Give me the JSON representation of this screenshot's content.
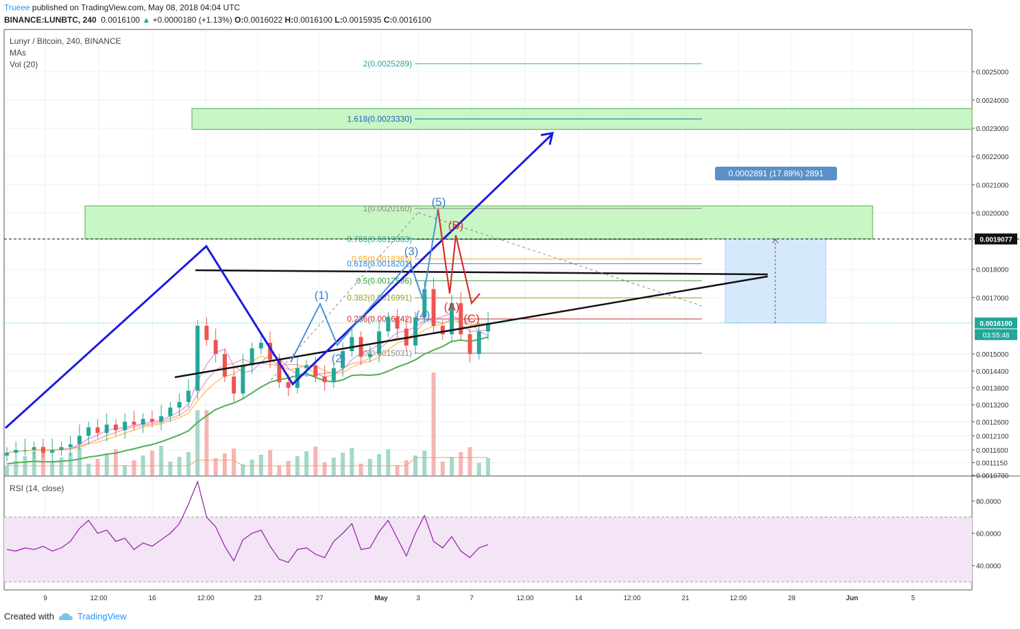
{
  "header": {
    "author": "Trueee",
    "published_text": "published on TradingView.com, May 08, 2018 04:04 UTC",
    "symbol": "BINANCE:LUNBTC, 240",
    "last_price": "0.0016100",
    "change": "+0.0000180 (+1.13%)",
    "o_label": "O:",
    "o_value": "0.0016022",
    "h_label": "H:",
    "h_value": "0.0016100",
    "l_label": "L:",
    "l_value": "0.0015935",
    "c_label": "C:",
    "c_value": "0.0016100"
  },
  "legend": {
    "title": "Lunyr / Bitcoin, 240, BINANCE",
    "mas": "MAs",
    "vol": "Vol (20)",
    "rsi": "RSI (14, close)"
  },
  "footer": {
    "created_with": "Created with",
    "brand": "TradingView"
  },
  "colors": {
    "up": "#26a69a",
    "down": "#ef5350",
    "wave": "#1a1adf",
    "abc": "#d32f2f",
    "rsi": "#9c27b0",
    "zone": "#b7f3b1"
  },
  "chart_data": [
    {
      "type": "candlestick",
      "title": "Lunyr / Bitcoin, 240, BINANCE",
      "y_scale": "linear",
      "ylim": [
        0.00107,
        0.00265
      ],
      "y_ticks": [
        "0.0025000",
        "0.0024000",
        "0.0023000",
        "0.0022000",
        "0.0021000",
        "0.0020000",
        "0.0019077",
        "0.0018000",
        "0.0017000",
        "0.0016100",
        "0.0015000",
        "0.0014400",
        "0.0013800",
        "0.0013200",
        "0.0012600",
        "0.0012100",
        "0.0011600",
        "0.0011150",
        "0.0010700"
      ],
      "x_ticks": [
        "9",
        "12:00",
        "16",
        "12:00",
        "23",
        "27",
        "May",
        "3",
        "7",
        "12:00",
        "14",
        "12:00",
        "21",
        "12:00",
        "28",
        "Jun",
        "5"
      ],
      "current_price": "0.0016100",
      "countdown": "03:55:48",
      "measure_label": "0.0002891 (17.89%) 2891",
      "fib_levels": [
        {
          "label": "2(0.0025289)",
          "value": 0.0025289,
          "color": "#26a69a"
        },
        {
          "label": "1.618(0.0023330)",
          "value": 0.002333,
          "color": "#1565c0"
        },
        {
          "label": "1(0.0020160)",
          "value": 0.002016,
          "color": "#888888"
        },
        {
          "label": "0.786(0.0019063)",
          "value": 0.0019063,
          "color": "#26a69a"
        },
        {
          "label": "0.65(0.0018365)",
          "value": 0.0018365,
          "color": "#f9a825"
        },
        {
          "label": "0.618(0.0018201)",
          "value": 0.0018201,
          "color": "#1e88e5"
        },
        {
          "label": "0.5(0.0017596)",
          "value": 0.0017596,
          "color": "#2e9d2e"
        },
        {
          "label": "0.382(0.0016991)",
          "value": 0.0016991,
          "color": "#9e9d24"
        },
        {
          "label": "0.236(0.0016242)",
          "value": 0.0016242,
          "color": "#c62828"
        },
        {
          "label": "0(0.0015031)",
          "value": 0.0015031,
          "color": "#888888"
        }
      ],
      "zones": [
        {
          "from": 0.002296,
          "to": 0.00237
        },
        {
          "from": 0.0019077,
          "to": 0.002025
        }
      ],
      "wave_labels": [
        "(1)",
        "(2)",
        "(3)",
        "(4)",
        "(5)"
      ],
      "abc_labels": [
        "(A)",
        "(B)",
        "(C)"
      ],
      "series": [
        {
          "name": "Close",
          "values": [
            0.00115,
            0.00116,
            0.00116,
            0.00117,
            0.00115,
            0.00116,
            0.00117,
            0.00118,
            0.00121,
            0.00124,
            0.00122,
            0.00125,
            0.00123,
            0.00126,
            0.00125,
            0.00127,
            0.00126,
            0.00128,
            0.00131,
            0.00133,
            0.00137,
            0.0016,
            0.00155,
            0.0015,
            0.00142,
            0.00136,
            0.00146,
            0.00152,
            0.00154,
            0.00148,
            0.0014,
            0.00138,
            0.00145,
            0.00146,
            0.00142,
            0.0014,
            0.00145,
            0.00151,
            0.00156,
            0.00149,
            0.0015,
            0.00158,
            0.00163,
            0.00159,
            0.00153,
            0.00163,
            0.00173,
            0.0016,
            0.00157,
            0.00168,
            0.00157,
            0.0015,
            0.00158,
            0.00161
          ]
        }
      ]
    },
    {
      "type": "line",
      "title": "RSI (14, close)",
      "ylim": [
        25,
        95
      ],
      "y_ticks": [
        "80.0000",
        "60.0000",
        "40.0000"
      ],
      "bands": [
        30,
        70
      ],
      "series": [
        {
          "name": "RSI",
          "values": [
            50,
            49,
            51,
            50,
            52,
            49,
            51,
            55,
            63,
            68,
            60,
            62,
            55,
            57,
            50,
            54,
            52,
            56,
            60,
            66,
            78,
            92,
            70,
            64,
            52,
            43,
            56,
            60,
            62,
            52,
            44,
            42,
            50,
            51,
            47,
            45,
            55,
            60,
            66,
            50,
            51,
            61,
            68,
            57,
            46,
            60,
            71,
            55,
            51,
            58,
            49,
            45,
            51,
            53
          ]
        }
      ]
    }
  ]
}
